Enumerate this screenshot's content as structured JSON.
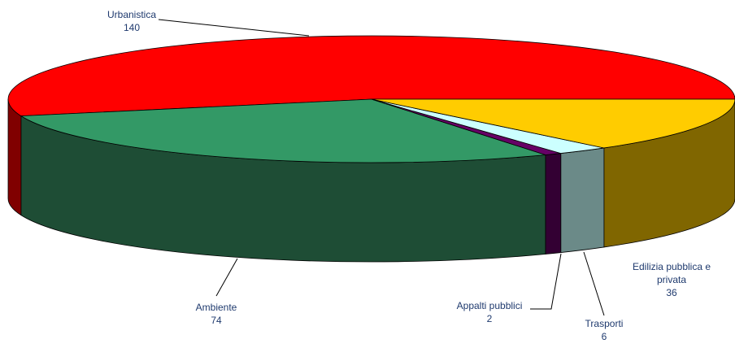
{
  "chart_data": {
    "type": "pie3d",
    "categories": [
      "Urbanistica",
      "Ambiente",
      "Appalti pubblici",
      "Trasporti",
      "Edilizia pubblica e privata"
    ],
    "values": [
      140,
      74,
      2,
      6,
      36
    ],
    "colors": [
      "#ff0000",
      "#339966",
      "#660066",
      "#ccffff",
      "#ffcc00"
    ],
    "side_colors": [
      "#800000",
      "#1e4d35",
      "#330033",
      "#6b8a88",
      "#806600"
    ]
  }
}
